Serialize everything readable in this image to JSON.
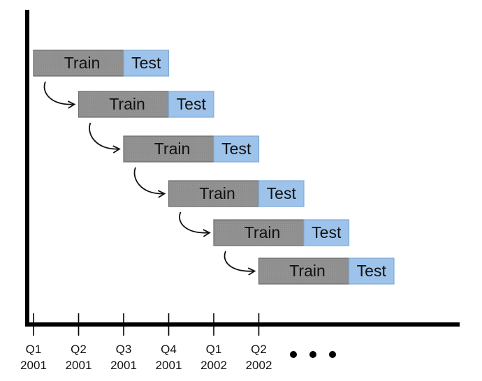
{
  "diagram": {
    "train_label": "Train",
    "test_label": "Test",
    "colors": {
      "train_fill": "#8f8f8f",
      "test_fill": "#9ec3ea",
      "axis": "#000000"
    },
    "periods": [
      {
        "quarter": "Q1",
        "year": "2001"
      },
      {
        "quarter": "Q2",
        "year": "2001"
      },
      {
        "quarter": "Q3",
        "year": "2001"
      },
      {
        "quarter": "Q4",
        "year": "2001"
      },
      {
        "quarter": "Q1",
        "year": "2002"
      },
      {
        "quarter": "Q2",
        "year": "2002"
      }
    ],
    "windows": [
      {
        "train_quarters": 2,
        "test_quarters": 1
      },
      {
        "train_quarters": 2,
        "test_quarters": 1
      },
      {
        "train_quarters": 2,
        "test_quarters": 1
      },
      {
        "train_quarters": 2,
        "test_quarters": 1
      },
      {
        "train_quarters": 2,
        "test_quarters": 1
      },
      {
        "train_quarters": 2,
        "test_quarters": 1
      }
    ],
    "continuation": "ellipsis-dots"
  }
}
